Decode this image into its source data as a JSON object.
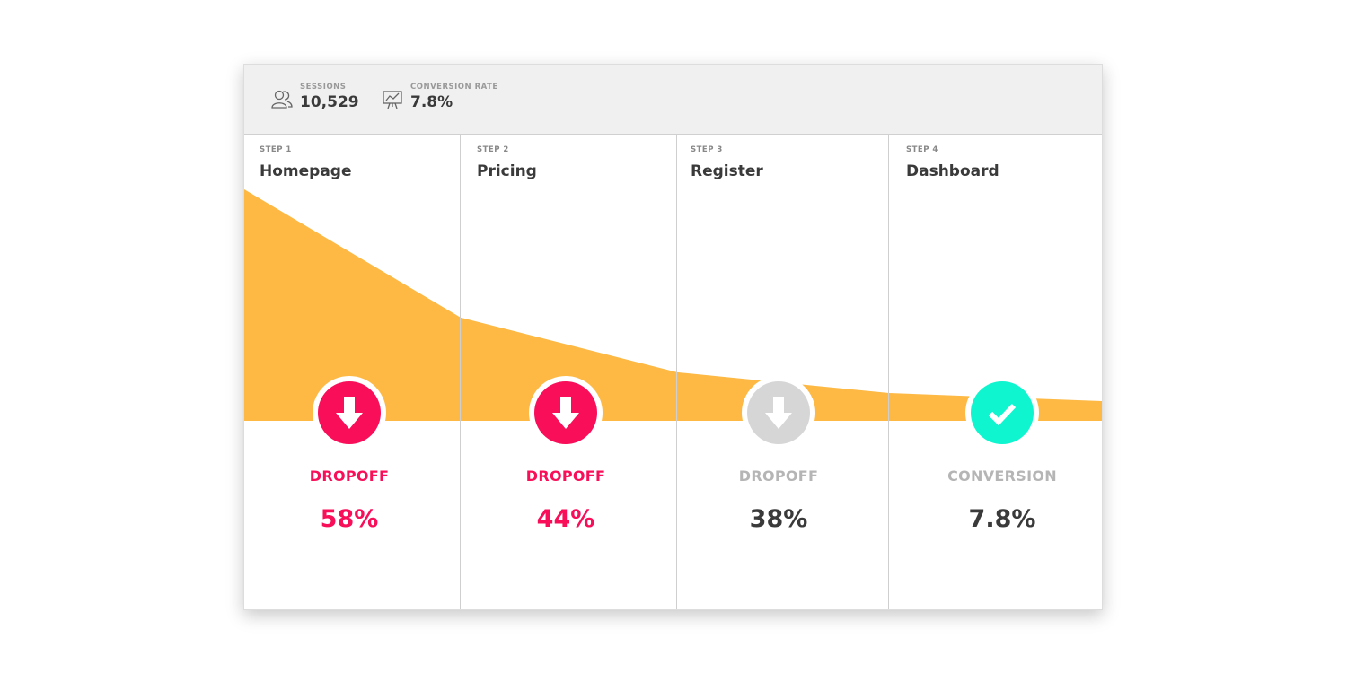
{
  "header": {
    "sessions": {
      "label": "SESSIONS",
      "value": "10,529",
      "icon": "users-icon"
    },
    "conversion_rate": {
      "label": "CONVERSION RATE",
      "value": "7.8%",
      "icon": "presentation-chart-icon"
    }
  },
  "colors": {
    "funnel": "#fdb944",
    "dropoff_active": "#f80e59",
    "dropoff_muted": "#d6d6d6",
    "conversion": "#0ff5cf",
    "text_dark": "#3a3a3a",
    "text_muted": "#b5b5b5"
  },
  "funnel_levels": [
    1.0,
    0.446,
    0.21,
    0.12,
    0.085
  ],
  "steps": [
    {
      "step": "STEP 1",
      "name": "Homepage",
      "metric_label": "DROPOFF",
      "metric_value": "58%",
      "icon": "arrow-down-icon"
    },
    {
      "step": "STEP 2",
      "name": "Pricing",
      "metric_label": "DROPOFF",
      "metric_value": "44%",
      "icon": "arrow-down-icon"
    },
    {
      "step": "STEP 3",
      "name": "Register",
      "metric_label": "DROPOFF",
      "metric_value": "38%",
      "icon": "arrow-down-icon"
    },
    {
      "step": "STEP 4",
      "name": "Dashboard",
      "metric_label": "CONVERSION",
      "metric_value": "7.8%",
      "icon": "checkmark-icon"
    }
  ]
}
